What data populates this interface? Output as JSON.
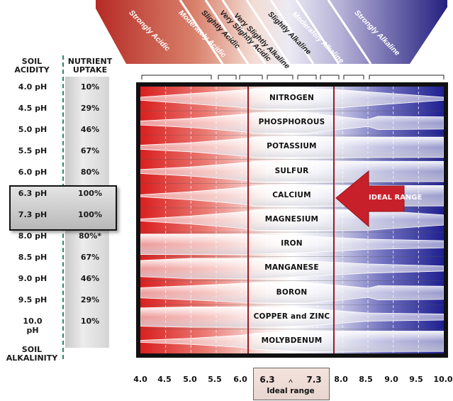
{
  "header": {
    "soil_acidity": [
      "SOIL",
      "ACIDITY"
    ],
    "nutrient_uptake": [
      "NUTRIENT",
      "UPTAKE"
    ],
    "soil_alkalinity": [
      "SOIL",
      "ALKALINITY"
    ]
  },
  "bands": [
    {
      "label": "Strongly Acidic",
      "color": "#b52a25"
    },
    {
      "label": "Moderately Acidic",
      "color": "#cf6f5a"
    },
    {
      "label": "Slightly Acidic",
      "color": "#e2a593"
    },
    {
      "label": "Very Slightly Acidic",
      "color": "#f1d6cc"
    },
    {
      "label": "Very Slightly Alkaline",
      "color": "#e4e2ee"
    },
    {
      "label": "Slightly Alkaline",
      "color": "#c3c0dd"
    },
    {
      "label": "Moderately Alkaline",
      "color": "#8f8bc4"
    },
    {
      "label": "Strongly Alkaline",
      "color": "#2e2b8c"
    }
  ],
  "rows": [
    {
      "ph": "4.0 pH",
      "uptake": "10%"
    },
    {
      "ph": "4.5 pH",
      "uptake": "29%"
    },
    {
      "ph": "5.0 pH",
      "uptake": "46%"
    },
    {
      "ph": "5.5 pH",
      "uptake": "67%"
    },
    {
      "ph": "6.0 pH",
      "uptake": "80%"
    },
    {
      "ph": "6.3 pH",
      "uptake": "100%"
    },
    {
      "ph": "7.3 pH",
      "uptake": "100%"
    },
    {
      "ph": "8.0 pH",
      "uptake": "80%*"
    },
    {
      "ph": "8.5 pH",
      "uptake": "67%"
    },
    {
      "ph": "9.0 pH",
      "uptake": "46%"
    },
    {
      "ph": "9.5 pH",
      "uptake": "29%"
    },
    {
      "ph": "10.0 pH",
      "uptake": "10%"
    }
  ],
  "ideal_range_arrow": "IDEAL RANGE",
  "ideal_range_caption": "Ideal range",
  "ideal_range_caret": "^",
  "colors": {
    "acid": "#d81c1c",
    "alkaline": "#23238f",
    "ideal_box": "#9b1b23",
    "arrow": "#c8202a",
    "frame": "#111111"
  },
  "chart_data": {
    "type": "heatmap",
    "x_ticks": [
      "4.0",
      "4.5",
      "5.0",
      "5.5",
      "6.0",
      "6.3",
      "7.3",
      "8.0",
      "8.5",
      "9.0",
      "9.5",
      "10.0"
    ],
    "x_tick_values": [
      4.0,
      4.5,
      5.0,
      5.5,
      6.0,
      6.3,
      7.3,
      8.0,
      8.5,
      9.0,
      9.5,
      10.0
    ],
    "xlim": [
      4.0,
      10.0
    ],
    "ideal_range": [
      6.3,
      7.3
    ],
    "nutrients": [
      {
        "name": "NITROGEN",
        "availability": [
          [
            4.0,
            0.15
          ],
          [
            5.0,
            0.5
          ],
          [
            6.0,
            0.85
          ],
          [
            6.3,
            1.0
          ],
          [
            7.3,
            1.0
          ],
          [
            8.0,
            0.85
          ],
          [
            9.0,
            0.5
          ],
          [
            10.0,
            0.15
          ]
        ]
      },
      {
        "name": "PHOSPHOROUS",
        "availability": [
          [
            4.0,
            0.2
          ],
          [
            5.0,
            0.45
          ],
          [
            6.0,
            0.85
          ],
          [
            6.3,
            1.0
          ],
          [
            7.3,
            1.0
          ],
          [
            8.0,
            0.6
          ],
          [
            8.5,
            0.35
          ],
          [
            8.7,
            0.65
          ],
          [
            10.0,
            0.6
          ]
        ]
      },
      {
        "name": "POTASSIUM",
        "availability": [
          [
            4.0,
            0.2
          ],
          [
            5.0,
            0.45
          ],
          [
            6.0,
            0.85
          ],
          [
            6.3,
            1.0
          ],
          [
            10.0,
            1.0
          ]
        ]
      },
      {
        "name": "SULFUR",
        "availability": [
          [
            4.0,
            0.2
          ],
          [
            5.0,
            0.45
          ],
          [
            6.0,
            0.85
          ],
          [
            6.3,
            1.0
          ],
          [
            10.0,
            1.0
          ]
        ]
      },
      {
        "name": "CALCIUM",
        "availability": [
          [
            4.0,
            0.1
          ],
          [
            5.0,
            0.4
          ],
          [
            6.0,
            0.8
          ],
          [
            6.3,
            1.0
          ],
          [
            10.0,
            1.0
          ]
        ]
      },
      {
        "name": "MAGNESIUM",
        "availability": [
          [
            4.0,
            0.1
          ],
          [
            5.0,
            0.4
          ],
          [
            6.0,
            0.8
          ],
          [
            6.3,
            1.0
          ],
          [
            8.5,
            1.0
          ],
          [
            10.0,
            0.5
          ]
        ]
      },
      {
        "name": "IRON",
        "availability": [
          [
            4.0,
            1.0
          ],
          [
            6.0,
            1.0
          ],
          [
            7.3,
            0.8
          ],
          [
            8.5,
            0.5
          ],
          [
            10.0,
            0.35
          ]
        ]
      },
      {
        "name": "MANGANESE",
        "availability": [
          [
            4.0,
            0.8
          ],
          [
            5.0,
            1.0
          ],
          [
            6.3,
            1.0
          ],
          [
            7.3,
            0.75
          ],
          [
            8.5,
            0.45
          ],
          [
            10.0,
            0.25
          ]
        ]
      },
      {
        "name": "BORON",
        "availability": [
          [
            4.0,
            0.5
          ],
          [
            5.0,
            0.7
          ],
          [
            6.3,
            1.0
          ],
          [
            7.3,
            1.0
          ],
          [
            8.0,
            0.7
          ],
          [
            8.5,
            0.45
          ],
          [
            8.7,
            0.7
          ],
          [
            10.0,
            0.65
          ]
        ]
      },
      {
        "name": "COPPER and ZINC",
        "availability": [
          [
            4.0,
            0.9
          ],
          [
            5.0,
            1.0
          ],
          [
            6.3,
            1.0
          ],
          [
            7.3,
            0.85
          ],
          [
            8.5,
            0.4
          ],
          [
            10.0,
            0.3
          ]
        ]
      },
      {
        "name": "MOLYBDENUM",
        "availability": [
          [
            4.0,
            0.1
          ],
          [
            5.0,
            0.3
          ],
          [
            6.0,
            0.6
          ],
          [
            6.3,
            0.8
          ],
          [
            7.3,
            1.0
          ],
          [
            10.0,
            1.0
          ]
        ]
      }
    ]
  }
}
